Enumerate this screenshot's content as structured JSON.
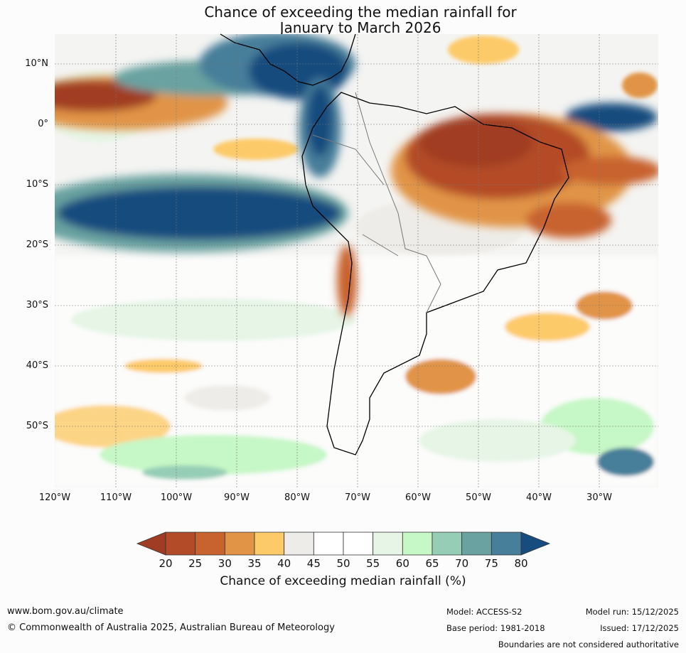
{
  "title": {
    "line1": "Chance of exceeding the median rainfall for",
    "line2": "January to March 2026"
  },
  "map": {
    "region": "South America",
    "lat_ticks": [
      "10°N",
      "0°",
      "10°S",
      "20°S",
      "30°S",
      "40°S",
      "50°S"
    ],
    "lon_ticks": [
      "120°W",
      "110°W",
      "100°W",
      "90°W",
      "80°W",
      "70°W",
      "60°W",
      "50°W",
      "40°W",
      "30°W"
    ]
  },
  "colorbar": {
    "ticks": [
      "20",
      "25",
      "30",
      "35",
      "40",
      "45",
      "50",
      "55",
      "60",
      "65",
      "70",
      "75",
      "80"
    ],
    "colors": [
      "#a03c23",
      "#b44b28",
      "#c8622e",
      "#e19446",
      "#fdca69",
      "#eeece8",
      "#ffffff",
      "#ffffff",
      "#e6f5e6",
      "#c6f7c6",
      "#95cdb6",
      "#69a2a0",
      "#477e9a",
      "#174c7e"
    ],
    "label": "Chance of exceeding median rainfall (%)"
  },
  "footer": {
    "website": "www.bom.gov.au/climate",
    "copyright": "© Commonwealth of Australia 2025, Australian Bureau of Meteorology",
    "model": "Model: ACCESS-S2",
    "base_period": "Base period: 1981-2018",
    "model_run": "Model run: 15/12/2025",
    "issued": "Issued: 17/12/2025",
    "disclaimer": "Boundaries are not considered authoritative"
  }
}
